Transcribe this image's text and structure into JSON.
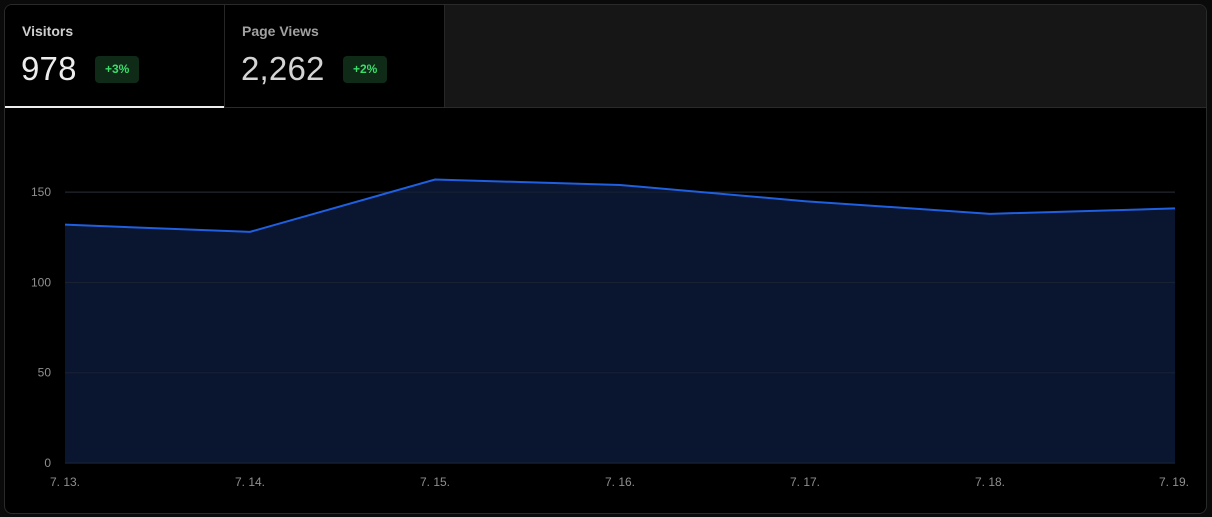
{
  "tabs": [
    {
      "label": "Visitors",
      "value": "978",
      "delta": "+3%",
      "active": true
    },
    {
      "label": "Page Views",
      "value": "2,262",
      "delta": "+2%",
      "active": false
    }
  ],
  "colors": {
    "line": "#1f5fe0",
    "fill": "#0a1530",
    "grid": "#262d36",
    "badge_text": "#3ddc6b",
    "badge_bg": "#0f2a17"
  },
  "chart_data": {
    "type": "area",
    "x": [
      "7. 13.",
      "7. 14.",
      "7. 15.",
      "7. 16.",
      "7. 17.",
      "7. 18.",
      "7. 19."
    ],
    "series": [
      {
        "values": [
          132,
          128,
          157,
          154,
          145,
          138,
          141
        ]
      }
    ],
    "ylim": [
      0,
      180
    ],
    "yticks": [
      0,
      50,
      100,
      150
    ],
    "grid": true,
    "title": "",
    "xlabel": "",
    "ylabel": ""
  }
}
